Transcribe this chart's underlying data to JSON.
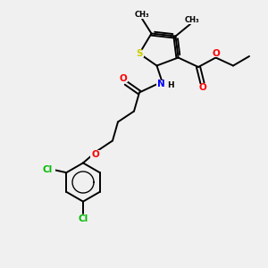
{
  "background_color": "#f0f0f0",
  "bond_color": "#000000",
  "sulfur_color": "#cccc00",
  "nitrogen_color": "#0000ff",
  "oxygen_color": "#ff0000",
  "chlorine_color": "#00bb00",
  "figsize": [
    3.0,
    3.0
  ],
  "dpi": 100,
  "xlim": [
    0,
    10
  ],
  "ylim": [
    0,
    10
  ],
  "lw": 1.4,
  "fs": 7.5,
  "fs_small": 6.5
}
